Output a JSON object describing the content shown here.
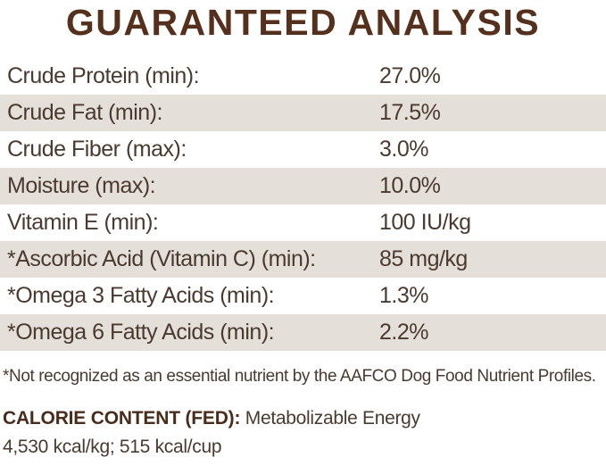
{
  "title": "GUARANTEED ANALYSIS",
  "table": {
    "rows": [
      {
        "label": "Crude Protein (min):",
        "value": "27.0%"
      },
      {
        "label": "Crude Fat (min):",
        "value": "17.5%"
      },
      {
        "label": "Crude Fiber (max):",
        "value": "3.0%"
      },
      {
        "label": "Moisture (max):",
        "value": "10.0%"
      },
      {
        "label": "Vitamin E (min):",
        "value": "100 IU/kg"
      },
      {
        "label": "*Ascorbic Acid (Vitamin C) (min):",
        "value": "85 mg/kg"
      },
      {
        "label": "*Omega 3 Fatty Acids (min):",
        "value": "1.3%"
      },
      {
        "label": "*Omega 6 Fatty Acids (min):",
        "value": "2.2%"
      }
    ]
  },
  "footnote": "*Not recognized as an essential nutrient by the AAFCO Dog Food Nutrient Profiles.",
  "calorie": {
    "heading": "CALORIE CONTENT (FED):",
    "description": "Metabolizable Energy",
    "values": "4,530 kcal/kg; 515 kcal/cup"
  },
  "colors": {
    "stripe": "#e4dfd9",
    "title_brown": "#54301d",
    "body_text": "#4a3a30"
  }
}
